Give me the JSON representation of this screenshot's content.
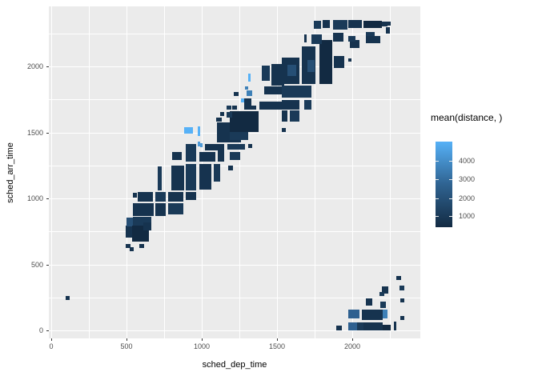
{
  "chart_data": {
    "type": "heatmap",
    "title": "",
    "xlabel": "sched_dep_time",
    "ylabel": "sched_arr_time",
    "x_axis": {
      "ticks": [
        0,
        500,
        1000,
        1500,
        2000
      ],
      "minor_ticks": [
        250,
        750,
        1250,
        1750,
        2250
      ],
      "range": [
        -20,
        2460
      ]
    },
    "y_axis": {
      "ticks": [
        0,
        500,
        1000,
        1500,
        2000
      ],
      "minor_ticks": [
        250,
        750,
        1250,
        1750,
        2250
      ],
      "range": [
        -60,
        2455
      ]
    },
    "legend": {
      "title": "mean(distance,  )",
      "tick_values": [
        "4000",
        "3000",
        "2000",
        "1000"
      ],
      "tick_offsets_pct": [
        22,
        44,
        66,
        87
      ],
      "gradient_high": "#56b1f7",
      "gradient_mid": "#2f6391",
      "gradient_low": "#132b43"
    },
    "palette": {
      "d0": "#122a42",
      "d1": "#16334f",
      "d2": "#1a3a58",
      "d3": "#1f4364",
      "m1": "#264f75",
      "m2": "#2e6090",
      "m3": "#3e80b7",
      "l1": "#4f9bd8",
      "l2": "#56b1f7"
    },
    "tiles": [
      [
        95,
        230,
        30,
        30,
        "d1"
      ],
      [
        495,
        625,
        30,
        30,
        "d1"
      ],
      [
        520,
        600,
        28,
        28,
        "d1"
      ],
      [
        585,
        625,
        30,
        30,
        "d1"
      ],
      [
        495,
        700,
        60,
        95,
        "d1"
      ],
      [
        500,
        790,
        75,
        65,
        "m1"
      ],
      [
        540,
        785,
        125,
        75,
        "d2"
      ],
      [
        535,
        670,
        115,
        125,
        "d0"
      ],
      [
        610,
        760,
        55,
        60,
        "d1"
      ],
      [
        540,
        865,
        140,
        100,
        "d1"
      ],
      [
        690,
        865,
        72,
        100,
        "d1"
      ],
      [
        778,
        880,
        98,
        85,
        "d2"
      ],
      [
        540,
        1005,
        30,
        40,
        "d1"
      ],
      [
        575,
        975,
        100,
        75,
        "d1"
      ],
      [
        690,
        975,
        72,
        75,
        "d2"
      ],
      [
        778,
        975,
        98,
        75,
        "d1"
      ],
      [
        895,
        988,
        68,
        60,
        "d1"
      ],
      [
        710,
        1060,
        26,
        180,
        "d2"
      ],
      [
        798,
        1060,
        85,
        190,
        "d1"
      ],
      [
        895,
        1060,
        68,
        200,
        "d2"
      ],
      [
        985,
        1065,
        80,
        195,
        "d1"
      ],
      [
        1080,
        1125,
        45,
        135,
        "d2"
      ],
      [
        1175,
        1215,
        30,
        35,
        "d1"
      ],
      [
        805,
        1290,
        62,
        62,
        "d1"
      ],
      [
        895,
        1280,
        68,
        132,
        "d2"
      ],
      [
        985,
        1280,
        105,
        72,
        "d1"
      ],
      [
        1105,
        1280,
        45,
        130,
        "d1"
      ],
      [
        1186,
        1290,
        70,
        62,
        "d2"
      ],
      [
        1020,
        1364,
        130,
        48,
        "d1"
      ],
      [
        1170,
        1370,
        118,
        42,
        "d2"
      ],
      [
        1308,
        1380,
        26,
        32,
        "d1"
      ],
      [
        988,
        1390,
        20,
        28,
        "l1"
      ],
      [
        885,
        1490,
        55,
        52,
        "l2"
      ],
      [
        975,
        1475,
        17,
        68,
        "l2"
      ],
      [
        975,
        1395,
        17,
        33,
        "l1"
      ],
      [
        1308,
        1885,
        18,
        62,
        "l2"
      ],
      [
        1262,
        1727,
        22,
        30,
        "l2"
      ],
      [
        1287,
        1824,
        22,
        26,
        "m3"
      ],
      [
        1300,
        1776,
        35,
        42,
        "m3"
      ],
      [
        1100,
        1425,
        160,
        148,
        "d1"
      ],
      [
        1186,
        1500,
        192,
        158,
        "d0"
      ],
      [
        1186,
        1440,
        120,
        62,
        "d2"
      ],
      [
        1096,
        1582,
        37,
        30,
        "d1"
      ],
      [
        1122,
        1624,
        27,
        30,
        "d1"
      ],
      [
        1165,
        1612,
        37,
        43,
        "d2"
      ],
      [
        1165,
        1673,
        30,
        30,
        "d2"
      ],
      [
        1202,
        1673,
        30,
        30,
        "d1"
      ],
      [
        1282,
        1673,
        80,
        30,
        "d1"
      ],
      [
        1282,
        1705,
        48,
        52,
        "d1"
      ],
      [
        1213,
        1776,
        33,
        32,
        "d1"
      ],
      [
        1385,
        1673,
        158,
        62,
        "d1"
      ],
      [
        1415,
        1788,
        133,
        62,
        "d1"
      ],
      [
        1532,
        1764,
        198,
        92,
        "d2"
      ],
      [
        1532,
        1673,
        118,
        72,
        "d1"
      ],
      [
        1680,
        1673,
        48,
        72,
        "d2"
      ],
      [
        1532,
        1580,
        38,
        85,
        "d1"
      ],
      [
        1585,
        1580,
        63,
        85,
        "d2"
      ],
      [
        1532,
        1503,
        26,
        30,
        "d1"
      ],
      [
        1400,
        1890,
        50,
        115,
        "d2"
      ],
      [
        1465,
        1855,
        85,
        165,
        "d1"
      ],
      [
        1532,
        1867,
        118,
        200,
        "d1"
      ],
      [
        1570,
        1930,
        60,
        80,
        "m1"
      ],
      [
        1665,
        1867,
        90,
        285,
        "d1"
      ],
      [
        1700,
        1960,
        50,
        90,
        "m1"
      ],
      [
        1782,
        1867,
        85,
        335,
        "d0"
      ],
      [
        1877,
        1988,
        68,
        92,
        "d1"
      ],
      [
        1973,
        2036,
        24,
        24,
        "d1"
      ],
      [
        1985,
        2140,
        63,
        60,
        "d1"
      ],
      [
        1730,
        2170,
        68,
        72,
        "d2"
      ],
      [
        1680,
        2180,
        18,
        60,
        "d1"
      ],
      [
        1745,
        2285,
        45,
        60,
        "d2"
      ],
      [
        1805,
        2290,
        46,
        60,
        "d1"
      ],
      [
        1870,
        2190,
        70,
        64,
        "d1"
      ],
      [
        1870,
        2280,
        100,
        70,
        "d2"
      ],
      [
        1975,
        2290,
        88,
        60,
        "d1"
      ],
      [
        1975,
        2185,
        48,
        45,
        "d2"
      ],
      [
        2075,
        2290,
        120,
        55,
        "d0"
      ],
      [
        2195,
        2300,
        40,
        42,
        "d1"
      ],
      [
        2235,
        2312,
        22,
        30,
        "d1"
      ],
      [
        2090,
        2175,
        95,
        55,
        "d1"
      ],
      [
        2090,
        2228,
        60,
        30,
        "d2"
      ],
      [
        2225,
        2248,
        25,
        52,
        "d1"
      ],
      [
        2292,
        380,
        30,
        34,
        "d1"
      ],
      [
        2315,
        300,
        30,
        40,
        "d2"
      ],
      [
        2195,
        280,
        45,
        54,
        "d1"
      ],
      [
        2180,
        258,
        34,
        30,
        "d2"
      ],
      [
        2320,
        215,
        24,
        28,
        "d1"
      ],
      [
        2090,
        185,
        45,
        58,
        "d1"
      ],
      [
        2185,
        170,
        40,
        48,
        "d2"
      ],
      [
        1975,
        90,
        75,
        68,
        "m2"
      ],
      [
        2065,
        80,
        135,
        78,
        "d1"
      ],
      [
        2200,
        90,
        35,
        68,
        "m3"
      ],
      [
        2320,
        80,
        24,
        30,
        "d1"
      ],
      [
        1895,
        0,
        38,
        38,
        "d1"
      ],
      [
        1975,
        0,
        90,
        58,
        "m2"
      ],
      [
        2030,
        0,
        45,
        58,
        "d2"
      ],
      [
        2075,
        0,
        125,
        62,
        "d1"
      ],
      [
        2200,
        0,
        58,
        40,
        "d0"
      ],
      [
        2278,
        0,
        17,
        65,
        "d1"
      ]
    ]
  },
  "colors": {
    "panel_bg": "#ebebeb",
    "grid": "#ffffff",
    "tick_text": "#4d4d4d",
    "title_text": "#000000",
    "background": "#ffffff"
  }
}
